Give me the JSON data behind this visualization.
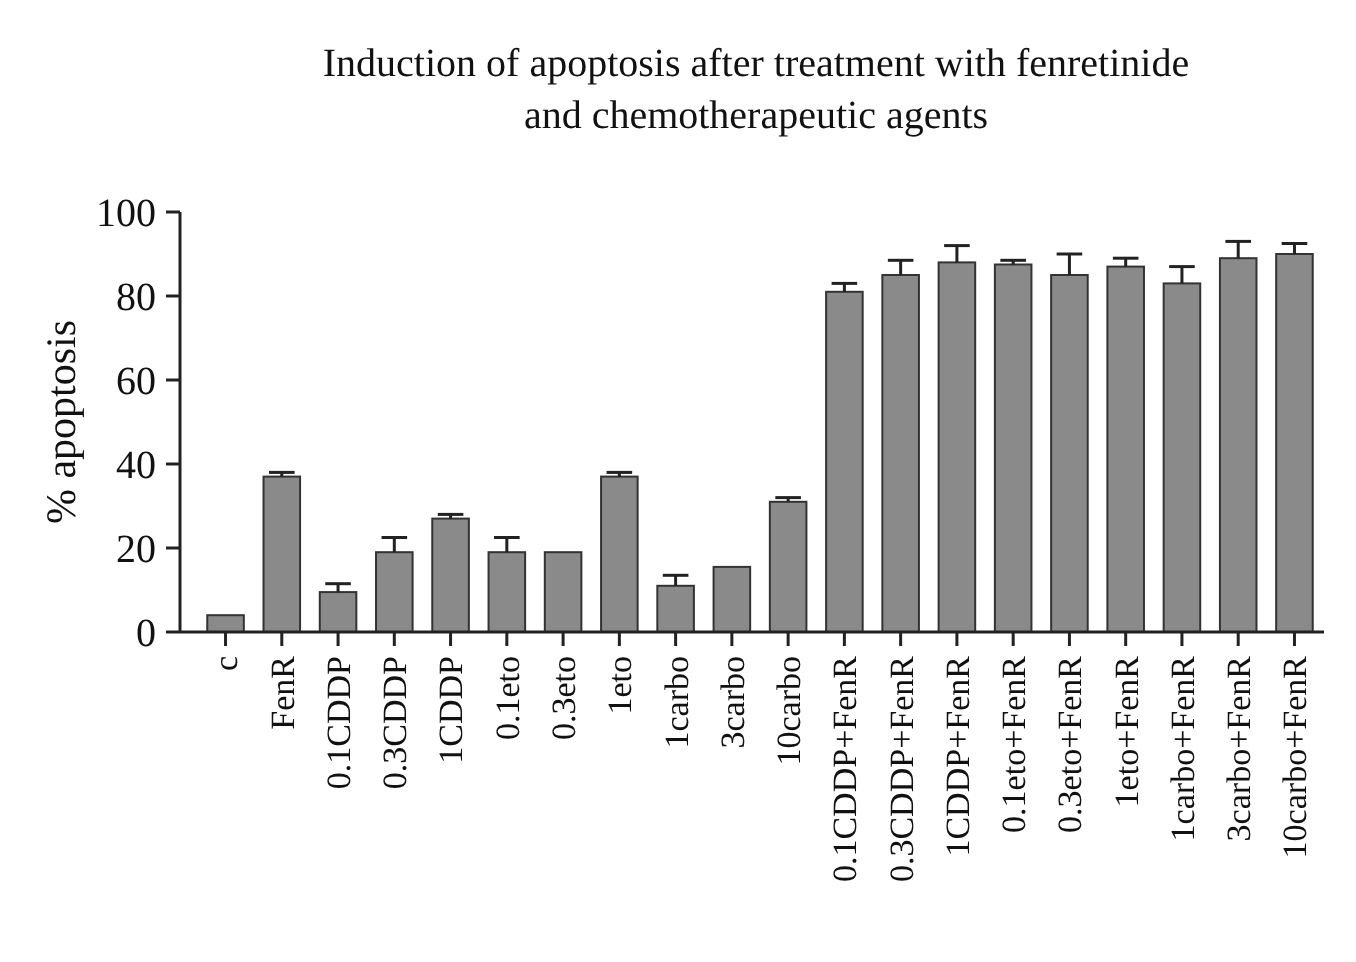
{
  "chart_data": {
    "type": "bar",
    "title": "Induction of apoptosis after treatment with fenretinide and chemotherapeutic agents",
    "ylabel": "% apoptosis",
    "categories": [
      "c",
      "FenR",
      "0.1CDDP",
      "0.3CDDP",
      "1CDDP",
      "0.1eto",
      "0.3eto",
      "1eto",
      "1carbo",
      "3carbo",
      "10carbo",
      "0.1CDDP+FenR",
      "0.3CDDP+FenR",
      "1CDDP+FenR",
      "0.1eto+FenR",
      "0.3eto+FenR",
      "1eto+FenR",
      "1carbo+FenR",
      "3carbo+FenR",
      "10carbo+FenR"
    ],
    "values": [
      4,
      37,
      9.5,
      19,
      27,
      19,
      19,
      37,
      11,
      15.5,
      31,
      81,
      85,
      88,
      87.5,
      85,
      87,
      83,
      89,
      90
    ],
    "errors": [
      null,
      1,
      2,
      3.5,
      1,
      3.5,
      null,
      1,
      2.5,
      null,
      1,
      2,
      3.5,
      4,
      1,
      5,
      2,
      4,
      4,
      2.5
    ],
    "color": "#8a8a8a",
    "ylim": [
      0,
      100
    ],
    "yticks": [
      0,
      20,
      40,
      60,
      80,
      100
    ],
    "grid": false
  }
}
